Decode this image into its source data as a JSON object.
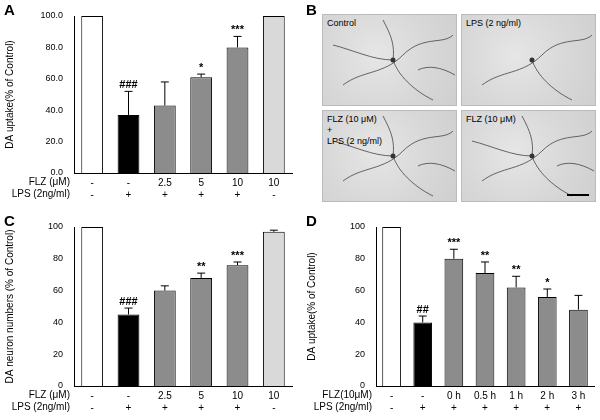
{
  "chart_data": [
    {
      "panel": "A",
      "type": "bar",
      "y_label": "DA uptake(% of Control)",
      "categories": [
        [
          "-",
          "-"
        ],
        [
          "-",
          "+"
        ],
        [
          "2.5",
          "+"
        ],
        [
          "5",
          "+"
        ],
        [
          "10",
          "+"
        ],
        [
          "10",
          "-"
        ]
      ],
      "row_labels": [
        "FLZ (μM)",
        "LPS (2ng/ml)"
      ],
      "values": [
        100,
        37,
        43,
        61,
        80,
        100
      ],
      "errors": [
        null,
        15,
        15,
        2,
        7,
        1
      ],
      "annotations": [
        null,
        "###",
        null,
        "*",
        "***",
        null
      ],
      "colors": [
        "#ffffff",
        "#000000",
        "#8c8c8c",
        "#8c8c8c",
        "#8c8c8c",
        "#d9d9d9"
      ],
      "ylim": [
        0,
        100
      ],
      "yticks": [
        {
          "value": 0,
          "label": "0.0"
        },
        {
          "value": 20,
          "label": "20.0"
        },
        {
          "value": 40,
          "label": "40.0"
        },
        {
          "value": 60,
          "label": "60.0"
        },
        {
          "value": 80,
          "label": "80.0"
        },
        {
          "value": 100,
          "label": "100.0"
        }
      ],
      "grid": false
    },
    {
      "panel": "C",
      "type": "bar",
      "y_label": "DA neuron numbers (% of Control)",
      "categories": [
        [
          "-",
          "-"
        ],
        [
          "-",
          "+"
        ],
        [
          "2.5",
          "+"
        ],
        [
          "5",
          "+"
        ],
        [
          "10",
          "+"
        ],
        [
          "10",
          "-"
        ]
      ],
      "row_labels": [
        "FLZ (μM)",
        "LPS (2ng/ml)"
      ],
      "values": [
        100,
        45,
        60,
        68,
        76,
        97
      ],
      "errors": [
        null,
        4,
        3,
        3,
        2,
        1
      ],
      "annotations": [
        null,
        "###",
        null,
        "**",
        "***",
        null
      ],
      "colors": [
        "#ffffff",
        "#000000",
        "#8c8c8c",
        "#8c8c8c",
        "#8c8c8c",
        "#d9d9d9"
      ],
      "ylim": [
        0,
        100
      ],
      "yticks": [
        0,
        20,
        40,
        60,
        80,
        100
      ],
      "grid": false
    },
    {
      "panel": "D",
      "type": "bar",
      "y_label": "DA uptake(% of Control)",
      "categories": [
        [
          "-",
          "-"
        ],
        [
          "-",
          "+"
        ],
        [
          "0 h",
          "+"
        ],
        [
          "0.5 h",
          "+"
        ],
        [
          "1 h",
          "+"
        ],
        [
          "2 h",
          "+"
        ],
        [
          "3 h",
          "+"
        ]
      ],
      "row_labels": [
        "FLZ(10μM)",
        "LPS (2ng/ml)"
      ],
      "values": [
        100,
        40,
        80,
        71,
        62,
        56,
        48
      ],
      "errors": [
        null,
        4,
        6,
        7,
        7,
        5,
        9
      ],
      "annotations": [
        null,
        "##",
        "***",
        "**",
        "**",
        "*",
        null
      ],
      "colors": [
        "#ffffff",
        "#000000",
        "#8c8c8c",
        "#8c8c8c",
        "#8c8c8c",
        "#8c8c8c",
        "#8c8c8c"
      ],
      "ylim": [
        0,
        100
      ],
      "yticks": [
        0,
        20,
        40,
        60,
        80,
        100
      ],
      "grid": false
    }
  ],
  "image_panel": {
    "panel": "B",
    "images": [
      {
        "lines": [
          "Control"
        ]
      },
      {
        "lines": [
          "LPS (2 ng/ml)"
        ]
      },
      {
        "lines": [
          "FLZ (10 μM)",
          "+",
          "LPS (2 ng/ml)"
        ]
      },
      {
        "lines": [
          "FLZ (10 μM)"
        ]
      }
    ]
  }
}
